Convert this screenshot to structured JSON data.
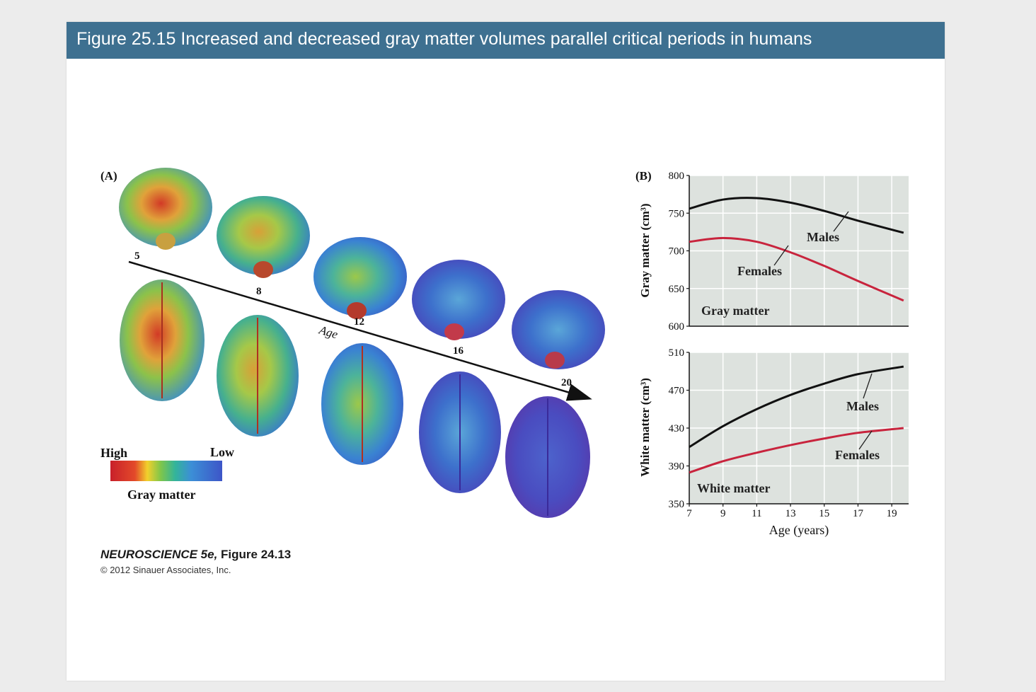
{
  "header": {
    "title": "Figure 25.15  Increased and decreased gray matter volumes parallel critical periods in humans"
  },
  "panel_a": {
    "label": "(A)",
    "age_label": "Age",
    "ages": [
      "5",
      "8",
      "12",
      "16",
      "20"
    ],
    "legend": {
      "high": "High",
      "low": "Low",
      "caption": "Gray matter"
    }
  },
  "panel_b": {
    "label": "(B)"
  },
  "credit": {
    "book_italic": "NEUROSCIENCE 5e,",
    "figure_ref": " Figure 24.13",
    "copyright": "© 2012 Sinauer Associates, Inc."
  },
  "colors": {
    "title_bar": "#3e7090",
    "males": "#111111",
    "females": "#c8243d",
    "plot_bg": "#dde2de"
  },
  "chart_data": [
    {
      "type": "line",
      "title": "Gray matter",
      "ylabel": "Gray matter (cm³)",
      "xlabel": "",
      "ylim": [
        600,
        800
      ],
      "xlim": [
        7,
        20
      ],
      "yticks": [
        600,
        650,
        700,
        750,
        800
      ],
      "grid": true,
      "series": [
        {
          "name": "Males",
          "x": [
            7,
            9,
            11,
            13,
            15,
            17,
            19.7
          ],
          "values": [
            756,
            768,
            770,
            764,
            753,
            740,
            724
          ]
        },
        {
          "name": "Females",
          "x": [
            7,
            9,
            11,
            13,
            15,
            17,
            19.7
          ],
          "values": [
            712,
            717,
            712,
            698,
            680,
            660,
            634
          ]
        }
      ]
    },
    {
      "type": "line",
      "title": "White matter",
      "ylabel": "White matter (cm³)",
      "xlabel": "Age (years)",
      "ylim": [
        350,
        510
      ],
      "xlim": [
        7,
        20
      ],
      "yticks": [
        350,
        390,
        430,
        470,
        510
      ],
      "xticks": [
        7,
        9,
        11,
        13,
        15,
        17,
        19
      ],
      "grid": true,
      "series": [
        {
          "name": "Males",
          "x": [
            7,
            9,
            11,
            13,
            15,
            17,
            19.7
          ],
          "values": [
            410,
            432,
            450,
            465,
            477,
            487,
            495
          ]
        },
        {
          "name": "Females",
          "x": [
            7,
            9,
            11,
            13,
            15,
            17,
            19.7
          ],
          "values": [
            383,
            395,
            404,
            412,
            419,
            425,
            430
          ]
        }
      ]
    }
  ]
}
